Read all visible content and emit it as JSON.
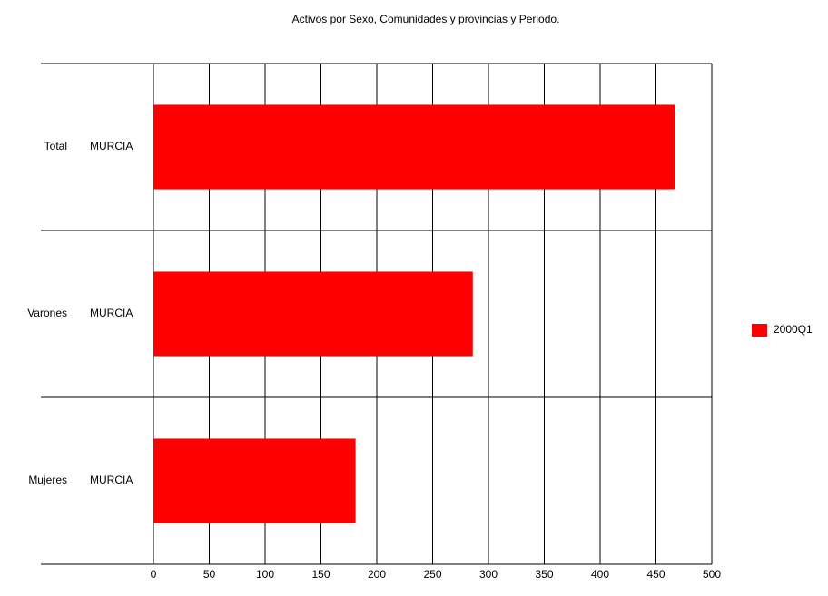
{
  "chart_data": {
    "type": "barh",
    "title": "Activos por Sexo, Comunidades y provincias y Periodo.",
    "categories": [
      [
        "Total",
        "MURCIA"
      ],
      [
        "Varones",
        "MURCIA"
      ],
      [
        "Mujeres",
        "MURCIA"
      ]
    ],
    "series": [
      {
        "name": "2000Q1",
        "color": "#ff0000",
        "values": [
          467,
          286,
          181
        ]
      }
    ],
    "xlim": [
      0,
      500
    ],
    "xticks": [
      0,
      50,
      100,
      150,
      200,
      250,
      300,
      350,
      400,
      450,
      500
    ],
    "grid": true,
    "legend": "right"
  }
}
